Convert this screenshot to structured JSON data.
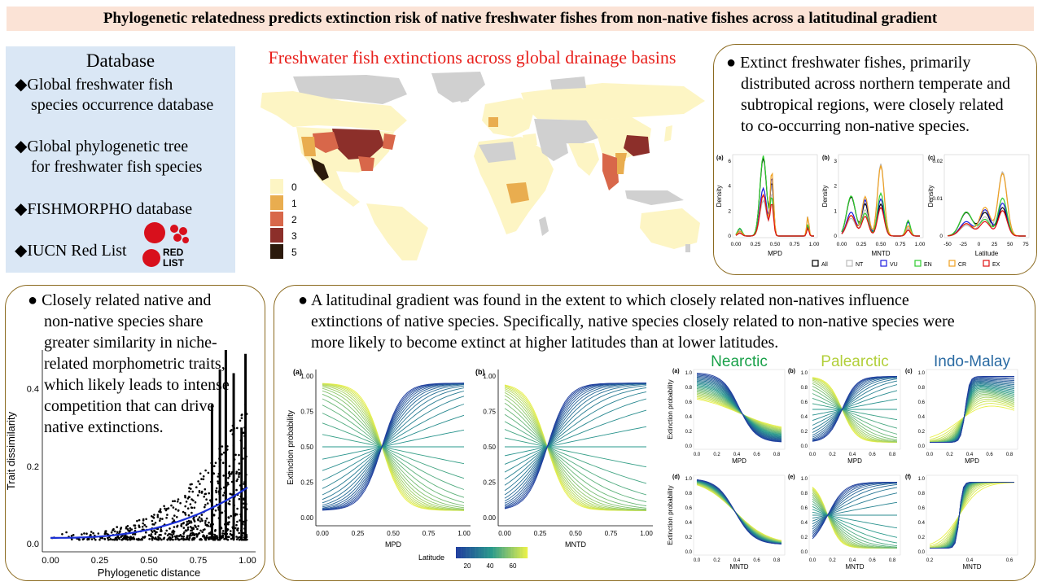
{
  "title": "Phylogenetic relatedness predicts extinction risk of native freshwater fishes from non-native fishes across a latitudinal gradient",
  "database": {
    "heading": "Database",
    "items": [
      [
        "Global freshwater  fish",
        "species occurrence database"
      ],
      [
        "Global phylogenetic  tree",
        "for freshwater fish species"
      ],
      [
        "FISHMORPHO database"
      ],
      [
        "IUCN Red List"
      ]
    ],
    "bullet": "◆",
    "logo_text": [
      "RED",
      "LIST"
    ]
  },
  "map": {
    "title": "Freshwater fish extinctions across global drainage basins",
    "legend": [
      "0",
      "1",
      "2",
      "3",
      "5"
    ],
    "legend_colors": [
      "#fdf5c4",
      "#e9ad4f",
      "#d8674a",
      "#8c2f2a",
      "#2b1a0c"
    ]
  },
  "summary_top": {
    "bullet": "●",
    "lines": [
      "Extinct freshwater fishes, primarily",
      "distributed across northern temperate and",
      "subtropical regions, were closely related",
      "to co-occurring non-native species."
    ]
  },
  "summary_left": {
    "bullet": "●",
    "lines": [
      "Closely related native and",
      "non-native species share",
      "greater similarity in niche-",
      "related morphometric traits,",
      "which likely leads to intense",
      "competition that can drive",
      "native extinctions."
    ]
  },
  "summary_bottom": {
    "bullet": "●",
    "lines": [
      "A latitudinal gradient was found in the extent to which closely related non-natives  influence",
      "extinctions of native species. Specifically,  native species closely related to non-native species were",
      "more likely to become extinct at higher latitudes than at lower latitudes."
    ]
  },
  "chart_data": [
    {
      "type": "line",
      "id": "density",
      "panels": [
        {
          "label": "(a)",
          "xlabel": "MPD",
          "ylabel": "Density",
          "xticks": [
            "0.00",
            "0.25",
            "0.50",
            "0.75",
            "1.00"
          ],
          "yticks": [
            "0",
            "2",
            "4",
            "6"
          ],
          "xlim": [
            0,
            1
          ],
          "ylim": [
            0,
            6
          ]
        },
        {
          "label": "(b)",
          "xlabel": "MNTD",
          "ylabel": "Density",
          "xticks": [
            "0.00",
            "0.25",
            "0.50",
            "0.75",
            "1.00"
          ],
          "yticks": [
            "0",
            "1",
            "2",
            "3"
          ],
          "xlim": [
            0,
            1
          ],
          "ylim": [
            0,
            4
          ]
        },
        {
          "label": "(c)",
          "xlabel": "Latitude",
          "ylabel": "Density",
          "xticks": [
            "-50",
            "-25",
            "0",
            "25",
            "50",
            "75"
          ],
          "yticks": [
            "0",
            "0.01",
            "0.02"
          ],
          "xlim": [
            -50,
            75
          ],
          "ylim": [
            0,
            0.025
          ]
        }
      ],
      "legend": [
        "All",
        "NT",
        "VU",
        "EN",
        "CR",
        "EX"
      ],
      "colors": [
        "#000000",
        "#bbbbbb",
        "#1a1adf",
        "#2ecc2e",
        "#f0a020",
        "#e01010"
      ]
    },
    {
      "type": "scatter",
      "id": "traits",
      "xlabel": "Phylogenetic distance",
      "ylabel": "Trait dissimilarity",
      "xticks": [
        "0.00",
        "0.25",
        "0.50",
        "0.75",
        "1.00"
      ],
      "yticks": [
        "0.0",
        "0.2",
        "0.4"
      ],
      "xlim": [
        0,
        1
      ],
      "ylim": [
        0,
        0.5
      ],
      "trend": {
        "x": [
          0,
          0.25,
          0.5,
          0.75,
          1.0
        ],
        "y": [
          0.015,
          0.022,
          0.035,
          0.07,
          0.145
        ]
      }
    },
    {
      "type": "line",
      "id": "prob-large",
      "ylabel": "Extinction probability",
      "yticks": [
        "0.00",
        "0.25",
        "0.50",
        "0.75",
        "1.00"
      ],
      "xticks": [
        "0.00",
        "0.25",
        "0.50",
        "0.75",
        "1.00"
      ],
      "panels": [
        {
          "label": "(a)",
          "xlabel": "MPD",
          "crossing": 0.42
        },
        {
          "label": "(b)",
          "xlabel": "MNTD",
          "crossing": 0.3
        }
      ],
      "colorbar": {
        "title": "Latitude",
        "ticks": [
          "20",
          "40",
          "60"
        ]
      }
    },
    {
      "type": "line",
      "id": "prob-regions",
      "ylabel": "Extinction probability",
      "yticks": [
        "0.0",
        "0.2",
        "0.4",
        "0.6",
        "0.8",
        "1.0"
      ],
      "regions": [
        "Nearctic",
        "Palearctic",
        "Indo-Malay"
      ],
      "region_colors": [
        "#1aa14a",
        "#b2cf3a",
        "#2b6ba3"
      ],
      "panels": [
        {
          "label": "(a)",
          "xlabel": "MPD",
          "xticks": [
            "0.0",
            "0.2",
            "0.4",
            "0.6",
            "0.8"
          ]
        },
        {
          "label": "(b)",
          "xlabel": "MPD",
          "xticks": [
            "0.0",
            "0.2",
            "0.4",
            "0.6",
            "0.8"
          ]
        },
        {
          "label": "(c)",
          "xlabel": "MPD",
          "xticks": [
            "0.0",
            "0.2",
            "0.4",
            "0.6",
            "0.8"
          ]
        },
        {
          "label": "(d)",
          "xlabel": "MNTD",
          "xticks": [
            "0.0",
            "0.2",
            "0.4",
            "0.6",
            "0.8"
          ]
        },
        {
          "label": "(e)",
          "xlabel": "MNTD",
          "xticks": [
            "0.0",
            "0.2",
            "0.4",
            "0.6",
            "0.8"
          ]
        },
        {
          "label": "(f)",
          "xlabel": "MNTD",
          "xticks": [
            "0.2",
            "0.4",
            "0.6"
          ]
        }
      ]
    }
  ]
}
